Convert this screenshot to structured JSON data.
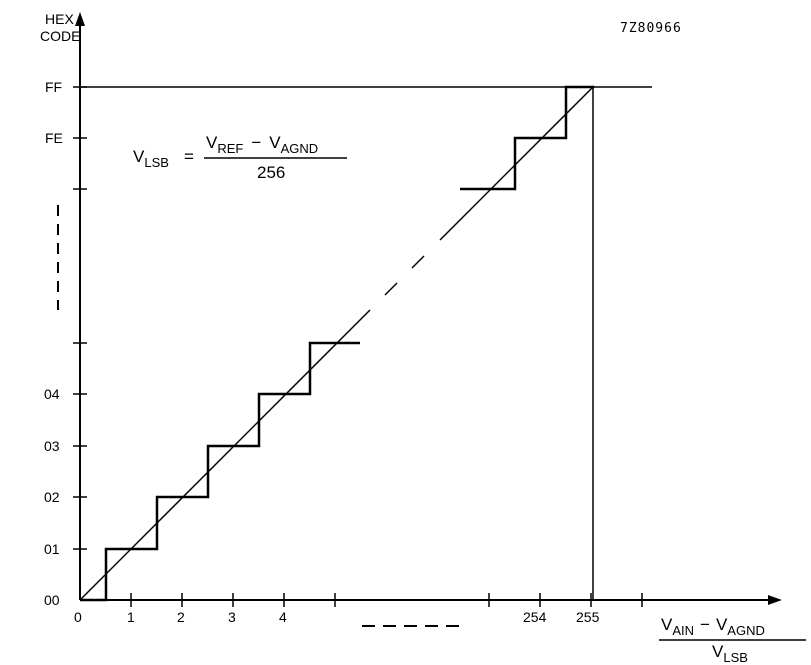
{
  "figure_code": "7Z80966",
  "y_axis": {
    "title_line1": "HEX",
    "title_line2": "CODE",
    "ticks": [
      {
        "label": "00",
        "value": 0
      },
      {
        "label": "01",
        "value": 1
      },
      {
        "label": "02",
        "value": 2
      },
      {
        "label": "03",
        "value": 3
      },
      {
        "label": "04",
        "value": 4
      },
      {
        "label": "FE",
        "value": 254
      },
      {
        "label": "FF",
        "value": 255
      }
    ]
  },
  "x_axis": {
    "ticks": [
      "0",
      "1",
      "2",
      "3",
      "4",
      "254",
      "255"
    ],
    "label_num_main1": "V",
    "label_num_sub1": "AIN",
    "label_num_op": "−",
    "label_num_main2": "V",
    "label_num_sub2": "AGND",
    "label_den_main": "V",
    "label_den_sub": "LSB"
  },
  "formula": {
    "lhs_main": "V",
    "lhs_sub": "LSB",
    "eq": "=",
    "num_main1": "V",
    "num_sub1": "REF",
    "num_op": "−",
    "num_main2": "V",
    "num_sub2": "AGND",
    "den": "256"
  },
  "colors": {
    "ink": "#000000",
    "background": "#ffffff"
  }
}
